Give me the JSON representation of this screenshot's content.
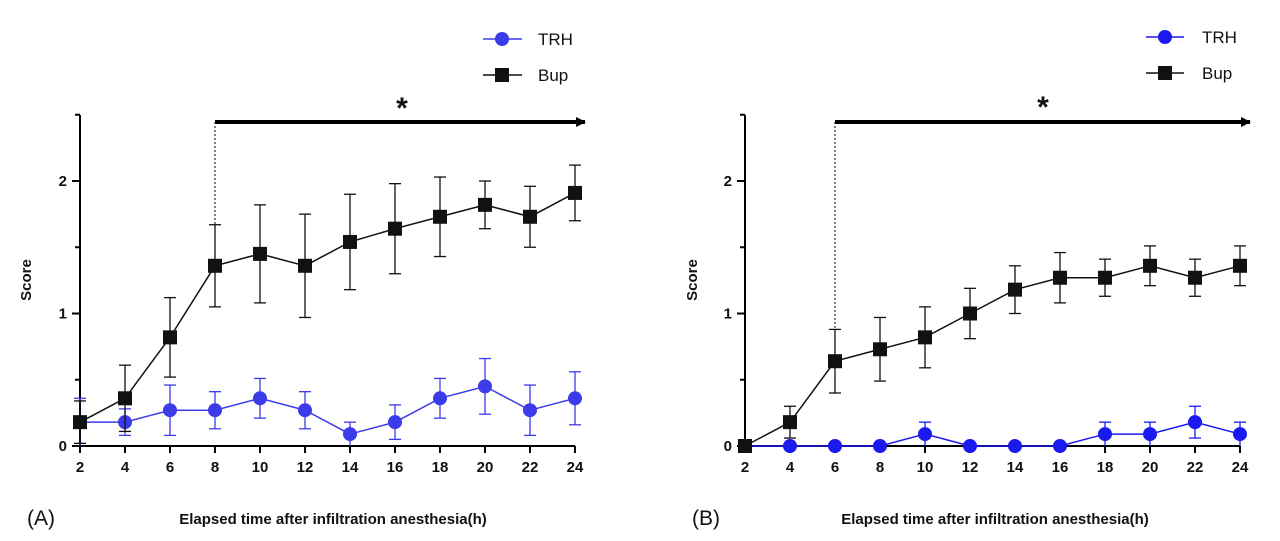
{
  "figure": {
    "panels": [
      "(A)",
      "(B)"
    ]
  },
  "chart_data": [
    {
      "type": "line",
      "panel_label": "(A)",
      "xlabel": "Elapsed time after infiltration anesthesia(h)",
      "ylabel": "Score",
      "x": [
        2,
        4,
        6,
        8,
        10,
        12,
        14,
        16,
        18,
        20,
        22,
        24
      ],
      "xticks": [
        "2",
        "4",
        "6",
        "8",
        "10",
        "12",
        "14",
        "16",
        "18",
        "20",
        "22",
        "24"
      ],
      "yticks": [
        "0",
        "1",
        "2"
      ],
      "xlim": [
        2,
        24
      ],
      "ylim": [
        0,
        2.5
      ],
      "legend": "top-right",
      "annotation": {
        "text": "*",
        "from_x": 8,
        "to_x": 24
      },
      "series": [
        {
          "name": "TRH",
          "marker": "circle",
          "color": "#3b3bea",
          "values": [
            0.18,
            0.18,
            0.27,
            0.27,
            0.36,
            0.27,
            0.09,
            0.18,
            0.36,
            0.45,
            0.27,
            0.36
          ],
          "error": [
            0.18,
            0.1,
            0.19,
            0.14,
            0.15,
            0.14,
            0.09,
            0.13,
            0.15,
            0.21,
            0.19,
            0.2
          ]
        },
        {
          "name": "Bup",
          "marker": "square",
          "color": "#111111",
          "values": [
            0.18,
            0.36,
            0.82,
            1.36,
            1.45,
            1.36,
            1.54,
            1.64,
            1.73,
            1.82,
            1.73,
            1.91
          ],
          "error": [
            0.16,
            0.25,
            0.3,
            0.31,
            0.37,
            0.39,
            0.36,
            0.34,
            0.3,
            0.18,
            0.23,
            0.21
          ]
        }
      ]
    },
    {
      "type": "line",
      "panel_label": "(B)",
      "xlabel": "Elapsed time after infiltration anesthesia(h)",
      "ylabel": "Score",
      "x": [
        2,
        4,
        6,
        8,
        10,
        12,
        14,
        16,
        18,
        20,
        22,
        24
      ],
      "xticks": [
        "2",
        "4",
        "6",
        "8",
        "10",
        "12",
        "14",
        "16",
        "18",
        "20",
        "22",
        "24"
      ],
      "yticks": [
        "0",
        "1",
        "2"
      ],
      "xlim": [
        2,
        24
      ],
      "ylim": [
        0,
        2.5
      ],
      "legend": "top-right",
      "annotation": {
        "text": "*",
        "from_x": 6,
        "to_x": 24
      },
      "series": [
        {
          "name": "TRH",
          "marker": "circle",
          "color": "#1a1aee",
          "values": [
            0,
            0,
            0,
            0,
            0.09,
            0,
            0,
            0,
            0.09,
            0.09,
            0.18,
            0.09
          ],
          "error": [
            0,
            0,
            0,
            0,
            0.09,
            0,
            0,
            0,
            0.09,
            0.09,
            0.12,
            0.09
          ]
        },
        {
          "name": "Bup",
          "marker": "square",
          "color": "#111111",
          "values": [
            0,
            0.18,
            0.64,
            0.73,
            0.82,
            1.0,
            1.18,
            1.27,
            1.27,
            1.36,
            1.27,
            1.36
          ],
          "error": [
            0,
            0.12,
            0.24,
            0.24,
            0.23,
            0.19,
            0.18,
            0.19,
            0.14,
            0.15,
            0.14,
            0.15
          ]
        }
      ]
    }
  ]
}
